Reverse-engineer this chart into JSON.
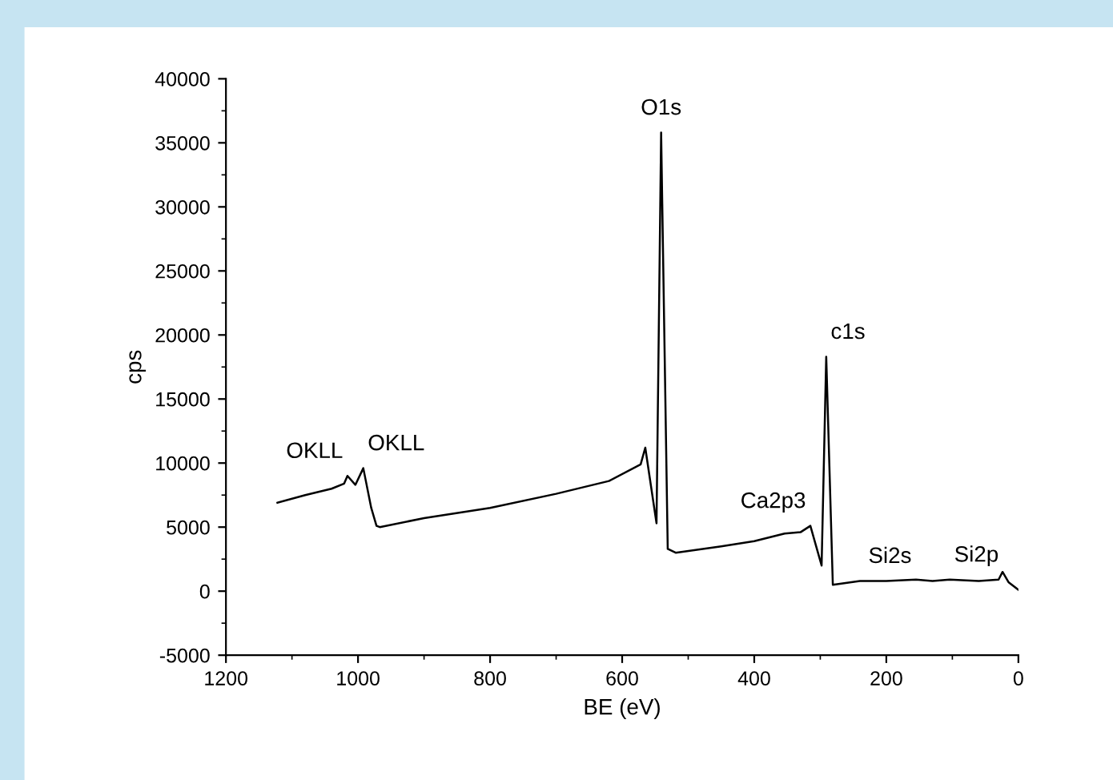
{
  "chart_data": {
    "type": "line",
    "xlabel": "BE (eV)",
    "ylabel": "cps",
    "x": [
      1122,
      1080,
      1040,
      1021,
      1016,
      1004,
      992,
      980,
      972,
      967,
      900,
      800,
      700,
      620,
      572,
      565,
      548,
      541,
      531,
      519,
      450,
      400,
      354,
      330,
      315,
      298,
      291,
      281,
      240,
      200,
      155,
      130,
      104,
      60,
      30,
      24,
      15,
      0
    ],
    "series": [
      {
        "color": "#000000",
        "values": [
          6900,
          7500,
          8000,
          8400,
          9000,
          8300,
          9600,
          6500,
          5100,
          5000,
          5700,
          6500,
          7600,
          8600,
          9900,
          11200,
          5300,
          35800,
          3300,
          3000,
          3500,
          3900,
          4500,
          4600,
          5100,
          2000,
          18300,
          500,
          800,
          800,
          900,
          800,
          900,
          800,
          900,
          1500,
          700,
          100
        ]
      }
    ],
    "xlim": [
      1200,
      0
    ],
    "ylim": [
      -5000,
      40000
    ],
    "xticks": [
      1200,
      1000,
      800,
      600,
      400,
      200,
      0
    ],
    "yticks": [
      -5000,
      0,
      5000,
      10000,
      15000,
      20000,
      25000,
      30000,
      35000,
      40000
    ],
    "grid": false,
    "legend": false,
    "marker": "none",
    "line_style": "solid",
    "annotations": [
      {
        "text": "OKLL",
        "x": 1016,
        "y": 9000
      },
      {
        "text": "OKLL",
        "x": 992,
        "y": 9600
      },
      {
        "text": "O1s",
        "x": 541,
        "y": 35800
      },
      {
        "text": "c1s",
        "x": 291,
        "y": 18300
      },
      {
        "text": "Ca2p3",
        "x": 315,
        "y": 5100
      },
      {
        "text": "Si2s",
        "x": 155,
        "y": 800
      },
      {
        "text": "Si2p",
        "x": 104,
        "y": 900
      }
    ]
  }
}
